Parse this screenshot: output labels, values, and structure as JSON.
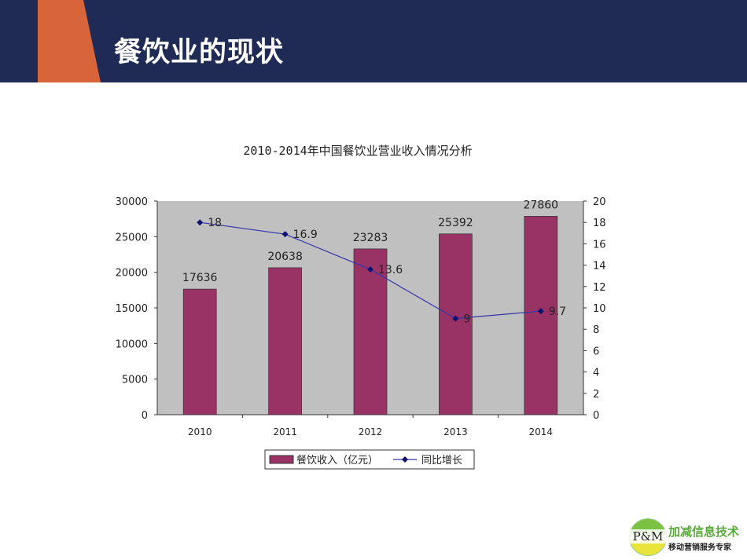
{
  "slide": {
    "title": "餐饮业的现状"
  },
  "logo": {
    "mark": "P&M",
    "name": "加减信息技术",
    "tagline": "移动营销服务专家"
  },
  "colors": {
    "header": "#1f2a55",
    "accent": "#d8643a",
    "bar": "#993366",
    "line": "#3333aa",
    "plot_bg": "#c0c0c0"
  },
  "chart_data": {
    "type": "bar+line",
    "title": "2010-2014年中国餐饮业营业收入情况分析",
    "categories": [
      "2010",
      "2011",
      "2012",
      "2013",
      "2014"
    ],
    "series": [
      {
        "name": "餐饮收入（亿元）",
        "type": "bar",
        "axis": "left",
        "values": [
          17636,
          20638,
          23283,
          25392,
          27860
        ],
        "labels": [
          "17636",
          "20638",
          "23283",
          "25392",
          "27860"
        ]
      },
      {
        "name": "同比增长",
        "type": "line",
        "axis": "right",
        "values": [
          18,
          16.9,
          13.6,
          9,
          9.7
        ],
        "labels": [
          "18",
          "16.9",
          "13.6",
          "9",
          "9.7"
        ]
      }
    ],
    "y_left": {
      "range": [
        0,
        30000
      ],
      "ticks": [
        "0",
        "5000",
        "10000",
        "15000",
        "20000",
        "25000",
        "30000"
      ]
    },
    "y_right": {
      "range": [
        0,
        20
      ],
      "ticks": [
        "0",
        "2",
        "4",
        "6",
        "8",
        "10",
        "12",
        "14",
        "16",
        "18",
        "20"
      ]
    },
    "grid": false,
    "legend": "bottom"
  }
}
